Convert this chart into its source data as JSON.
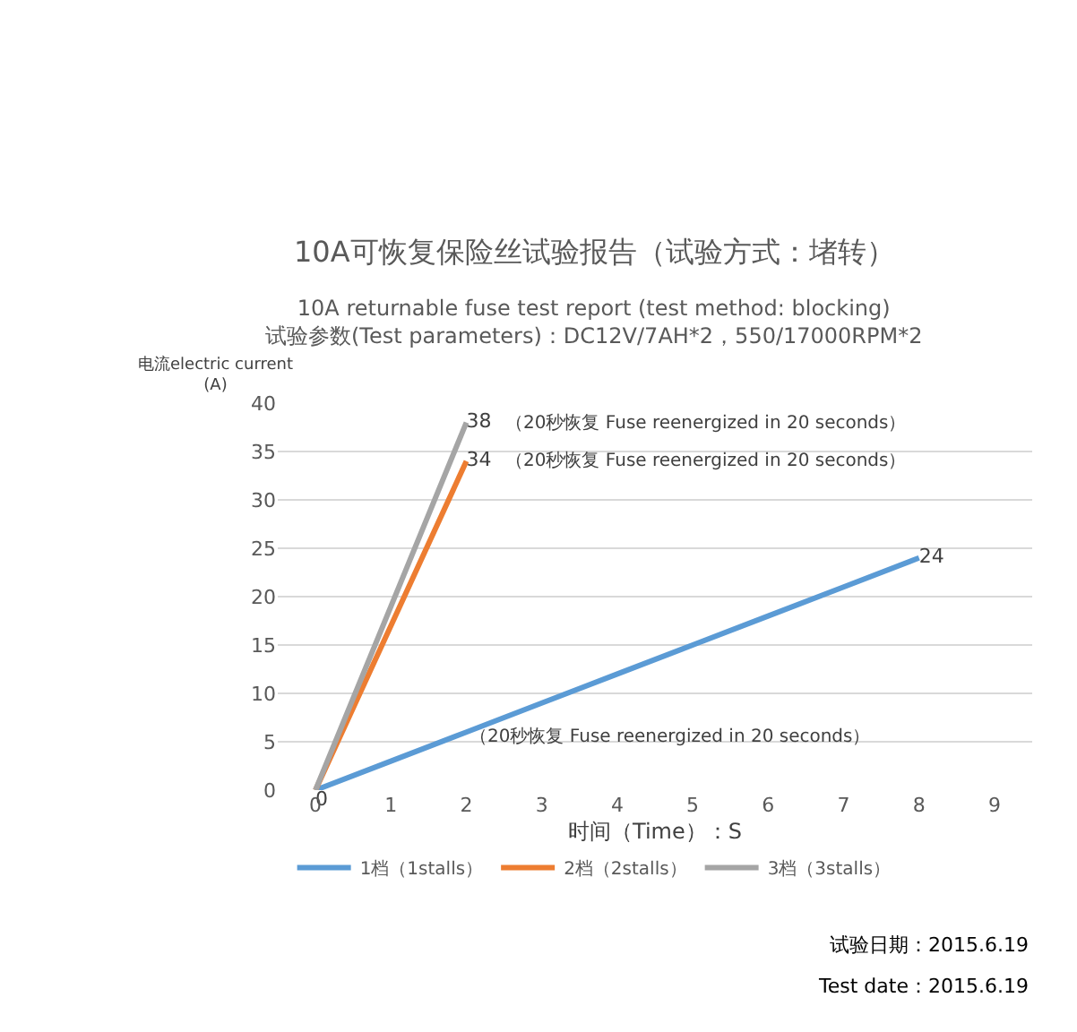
{
  "chart_data": {
    "type": "line",
    "title": "10A可恢复保险丝试验报告（试验方式：堵转）",
    "subtitle": "10A returnable fuse test report (test method: blocking)\n试验参数(Test parameters)：DC12V/7AH*2，550/17000RPM*2",
    "xlabel": "时间（Time）：S",
    "ylabel": "电流electric current\n(A)",
    "xlim": [
      -0.5,
      9.5
    ],
    "xticks": [
      0,
      1,
      2,
      3,
      4,
      5,
      6,
      7,
      8,
      9
    ],
    "ylim": [
      0,
      40
    ],
    "yticks": [
      0,
      5,
      10,
      15,
      20,
      25,
      30,
      35,
      40
    ],
    "grid": "y",
    "legend": "bottom",
    "marker": "none",
    "line_style": "solid",
    "series": [
      {
        "name": "1档（1stalls）",
        "color": "#5b9bd5",
        "x": [
          0,
          1,
          2,
          3,
          4,
          5,
          6,
          7,
          8
        ],
        "values": [
          0,
          3,
          6,
          9,
          12,
          15,
          18,
          21,
          24
        ],
        "value_labels": [
          "0",
          null,
          null,
          null,
          null,
          null,
          null,
          null,
          "24"
        ]
      },
      {
        "name": "2档（2stalls）",
        "color": "#ed7d31",
        "x": [
          0,
          1,
          2
        ],
        "values": [
          0,
          17,
          34
        ],
        "value_labels": [
          null,
          null,
          "34"
        ]
      },
      {
        "name": "3档（3stalls）",
        "color": "#a5a5a5",
        "x": [
          0,
          1,
          2
        ],
        "values": [
          0,
          19,
          38
        ],
        "value_labels": [
          null,
          null,
          "38"
        ]
      }
    ],
    "annotations": [
      {
        "text": "（20秒恢复 Fuse reenergized in 20 seconds）",
        "x": 2,
        "y": 38
      },
      {
        "text": "（20秒恢复 Fuse reenergized in 20 seconds）",
        "x": 2,
        "y": 34
      },
      "（20秒恢复 Fuse reenergized in 20 seconds）",
      "试验日期：2015.6.19",
      "Test date：2015.6.19"
    ]
  }
}
